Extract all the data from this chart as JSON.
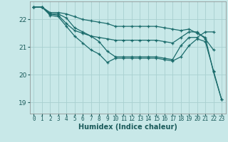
{
  "xlabel": "Humidex (Indice chaleur)",
  "ylabel": "",
  "bg_color": "#c8e8e8",
  "grid_color": "#a8d0d0",
  "line_color": "#1a6b6b",
  "xlim": [
    -0.5,
    23.5
  ],
  "ylim": [
    18.6,
    22.65
  ],
  "yticks": [
    19,
    20,
    21,
    22
  ],
  "xticks": [
    0,
    1,
    2,
    3,
    4,
    5,
    6,
    7,
    8,
    9,
    10,
    11,
    12,
    13,
    14,
    15,
    16,
    17,
    18,
    19,
    20,
    21,
    22,
    23
  ],
  "lines": [
    {
      "x": [
        0,
        1,
        2,
        3,
        4,
        5,
        6,
        7,
        8,
        9,
        10,
        11,
        12,
        13,
        14,
        15,
        16,
        17,
        18,
        19,
        20,
        21,
        22,
        23
      ],
      "y": [
        22.45,
        22.45,
        22.25,
        22.25,
        22.2,
        22.1,
        22.0,
        21.95,
        21.9,
        21.85,
        21.75,
        21.75,
        21.75,
        21.75,
        21.75,
        21.75,
        21.7,
        21.65,
        21.6,
        21.65,
        21.5,
        21.35,
        20.1,
        19.1
      ]
    },
    {
      "x": [
        0,
        1,
        2,
        3,
        4,
        5,
        6,
        7,
        8,
        9,
        10,
        11,
        12,
        13,
        14,
        15,
        16,
        17,
        18,
        19,
        20,
        21,
        22,
        23
      ],
      "y": [
        22.45,
        22.45,
        22.15,
        22.1,
        21.75,
        21.4,
        21.15,
        20.9,
        20.75,
        20.45,
        20.6,
        20.6,
        20.6,
        20.6,
        20.6,
        20.6,
        20.55,
        20.5,
        20.65,
        21.05,
        21.3,
        21.2,
        20.15,
        19.1
      ]
    },
    {
      "x": [
        0,
        1,
        2,
        3,
        4,
        5,
        6,
        7,
        8,
        9,
        10,
        11,
        12,
        13,
        14,
        15,
        16,
        17,
        18,
        19,
        20,
        21,
        22
      ],
      "y": [
        22.45,
        22.45,
        22.2,
        22.2,
        22.05,
        21.7,
        21.55,
        21.4,
        21.2,
        20.85,
        20.65,
        20.65,
        20.65,
        20.65,
        20.65,
        20.65,
        20.6,
        20.55,
        21.05,
        21.35,
        21.35,
        21.55,
        21.55
      ]
    },
    {
      "x": [
        0,
        1,
        2,
        3,
        4,
        5,
        6,
        7,
        8,
        9,
        10,
        11,
        12,
        13,
        14,
        15,
        16,
        17,
        18,
        19,
        20,
        21,
        22
      ],
      "y": [
        22.45,
        22.45,
        22.2,
        22.15,
        21.85,
        21.6,
        21.5,
        21.4,
        21.35,
        21.3,
        21.25,
        21.25,
        21.25,
        21.25,
        21.25,
        21.25,
        21.2,
        21.15,
        21.35,
        21.55,
        21.55,
        21.3,
        20.9
      ]
    }
  ]
}
